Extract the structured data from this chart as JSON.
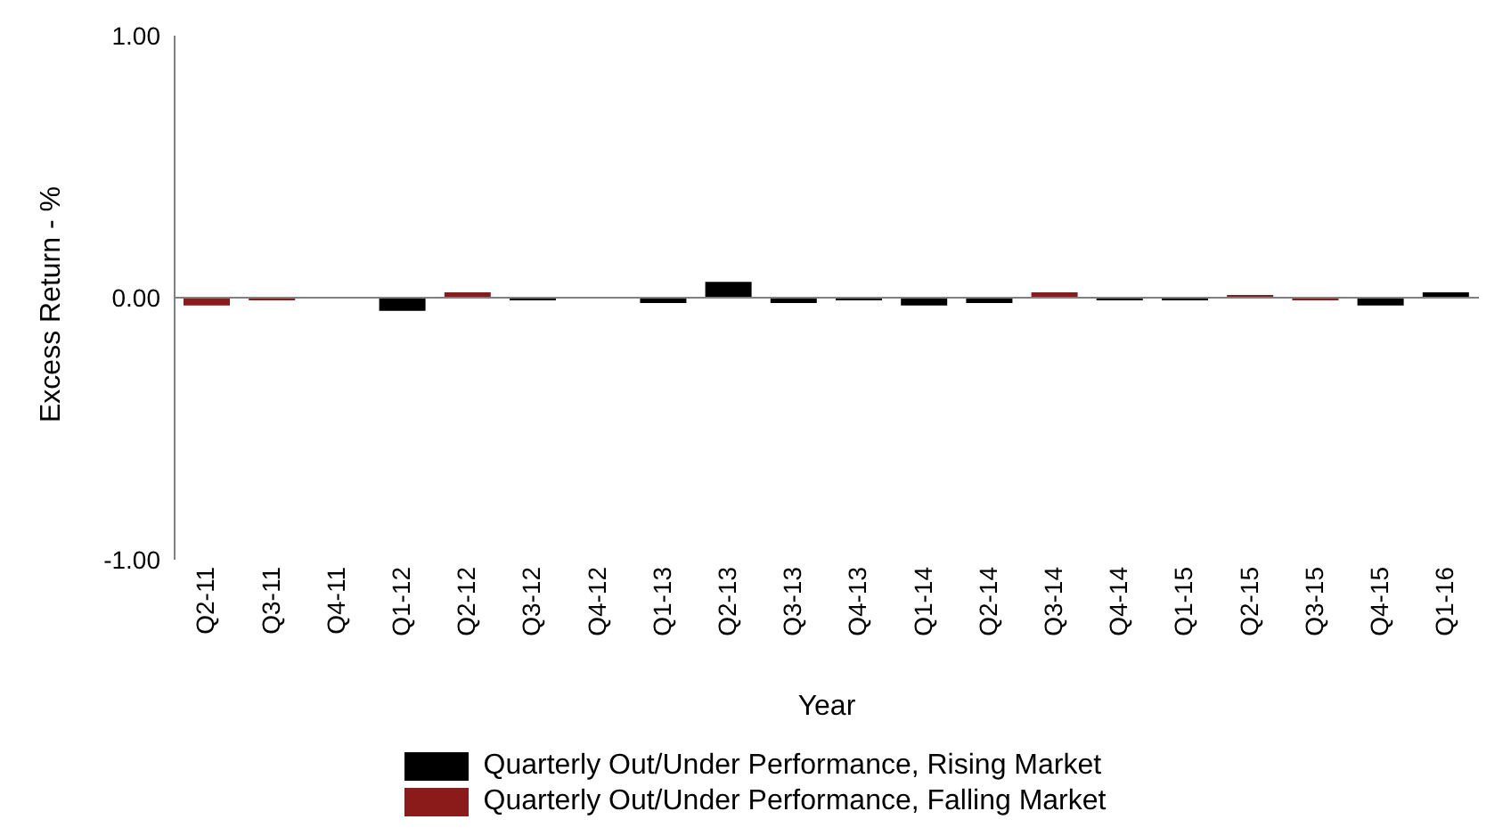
{
  "chart_data": {
    "type": "bar",
    "stacked": true,
    "xlabel": "Year",
    "ylabel": "Excess Return - %",
    "categories": [
      "Q2-11",
      "Q3-11",
      "Q4-11",
      "Q1-12",
      "Q2-12",
      "Q3-12",
      "Q4-12",
      "Q1-13",
      "Q2-13",
      "Q3-13",
      "Q4-13",
      "Q1-14",
      "Q2-14",
      "Q3-14",
      "Q4-14",
      "Q1-15",
      "Q2-15",
      "Q3-15",
      "Q4-15",
      "Q1-16"
    ],
    "series": [
      {
        "name": "Quarterly Out/Under Performance, Rising Market",
        "color": "#000000",
        "values": [
          null,
          null,
          null,
          -0.05,
          null,
          -0.01,
          null,
          -0.02,
          0.06,
          -0.02,
          -0.01,
          -0.03,
          -0.02,
          null,
          -0.01,
          -0.01,
          null,
          null,
          -0.03,
          0.02
        ]
      },
      {
        "name": "Quarterly Out/Under Performance, Falling Market",
        "color": "#8b1a1a",
        "values": [
          -0.03,
          -0.01,
          null,
          null,
          0.02,
          null,
          null,
          null,
          null,
          null,
          null,
          null,
          null,
          0.02,
          null,
          null,
          0.01,
          -0.01,
          null,
          null
        ]
      }
    ],
    "ylim": [
      -1,
      1
    ],
    "yticks": [
      {
        "value": -1,
        "label": "-1.00"
      },
      {
        "value": 0,
        "label": "0.00"
      },
      {
        "value": 1,
        "label": "1.00"
      }
    ],
    "ref_lines": [
      {
        "axis": "y",
        "value": 0,
        "color": "#808080"
      }
    ],
    "grid": false,
    "legend": "bottom"
  }
}
